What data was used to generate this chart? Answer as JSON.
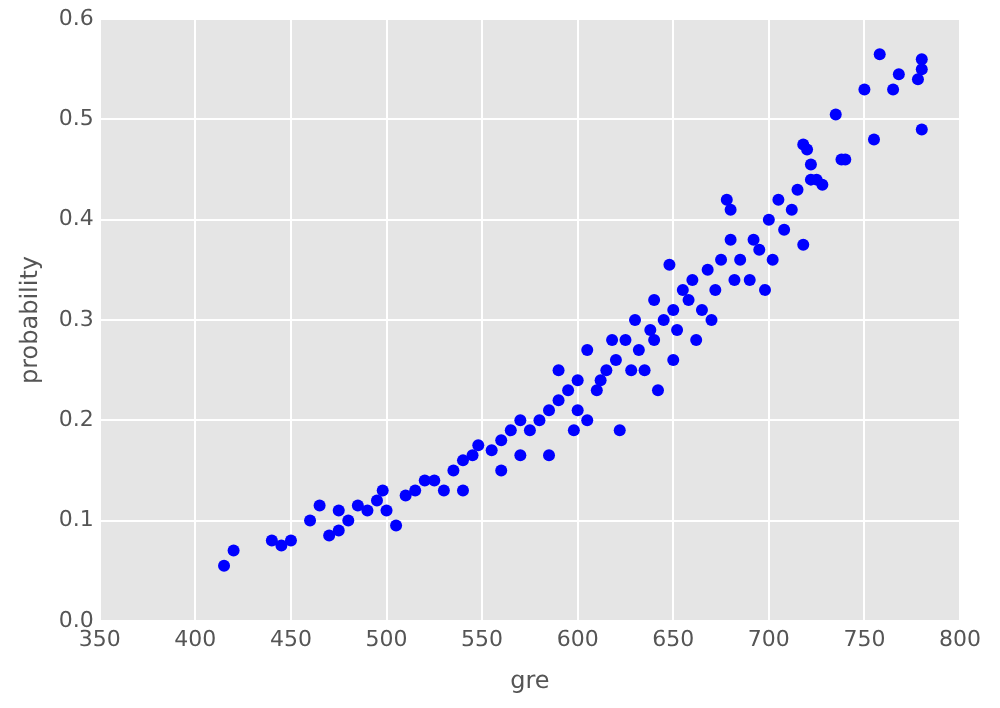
{
  "chart_data": {
    "type": "scatter",
    "xlabel": "gre",
    "ylabel": "probability",
    "xlim": [
      350,
      800
    ],
    "xticks": [
      350,
      400,
      450,
      500,
      550,
      600,
      650,
      700,
      750,
      800
    ],
    "ylim": [
      0,
      0.6
    ],
    "yticks": [
      {
        "value": 0,
        "label": "0.0"
      },
      0.1,
      0.2,
      0.3,
      0.4,
      0.5,
      0.6
    ],
    "grid": true,
    "marker": "circle",
    "legend": false,
    "series": [
      {
        "color": "#0000ff",
        "x": [
          415,
          420,
          440,
          445,
          450,
          460,
          465,
          470,
          475,
          475,
          480,
          485,
          490,
          495,
          498,
          500,
          505,
          510,
          515,
          520,
          525,
          530,
          535,
          540,
          540,
          545,
          548,
          555,
          560,
          560,
          565,
          570,
          570,
          575,
          580,
          585,
          585,
          590,
          590,
          595,
          598,
          600,
          600,
          605,
          605,
          610,
          612,
          615,
          618,
          620,
          622,
          625,
          628,
          630,
          632,
          635,
          638,
          640,
          640,
          642,
          645,
          648,
          650,
          650,
          652,
          655,
          658,
          660,
          662,
          665,
          668,
          670,
          672,
          675,
          678,
          680,
          680,
          682,
          685,
          690,
          692,
          695,
          698,
          700,
          702,
          705,
          708,
          712,
          715,
          718,
          718,
          720,
          722,
          722,
          725,
          728,
          735,
          738,
          740,
          750,
          755,
          758,
          765,
          768,
          778,
          780,
          780,
          780
        ],
        "values": [
          0.055,
          0.07,
          0.08,
          0.075,
          0.08,
          0.1,
          0.115,
          0.085,
          0.09,
          0.11,
          0.1,
          0.115,
          0.11,
          0.12,
          0.13,
          0.11,
          0.095,
          0.125,
          0.13,
          0.14,
          0.14,
          0.13,
          0.15,
          0.16,
          0.13,
          0.165,
          0.175,
          0.17,
          0.18,
          0.15,
          0.19,
          0.2,
          0.165,
          0.19,
          0.2,
          0.21,
          0.165,
          0.22,
          0.25,
          0.23,
          0.19,
          0.21,
          0.24,
          0.2,
          0.27,
          0.23,
          0.24,
          0.25,
          0.28,
          0.26,
          0.19,
          0.28,
          0.25,
          0.3,
          0.27,
          0.25,
          0.29,
          0.28,
          0.32,
          0.23,
          0.3,
          0.355,
          0.26,
          0.31,
          0.29,
          0.33,
          0.32,
          0.34,
          0.28,
          0.31,
          0.35,
          0.3,
          0.33,
          0.36,
          0.42,
          0.41,
          0.38,
          0.34,
          0.36,
          0.34,
          0.38,
          0.37,
          0.33,
          0.4,
          0.36,
          0.42,
          0.39,
          0.41,
          0.43,
          0.375,
          0.475,
          0.47,
          0.455,
          0.44,
          0.44,
          0.435,
          0.505,
          0.46,
          0.46,
          0.53,
          0.48,
          0.565,
          0.53,
          0.545,
          0.54,
          0.56,
          0.55,
          0.49
        ]
      }
    ]
  }
}
